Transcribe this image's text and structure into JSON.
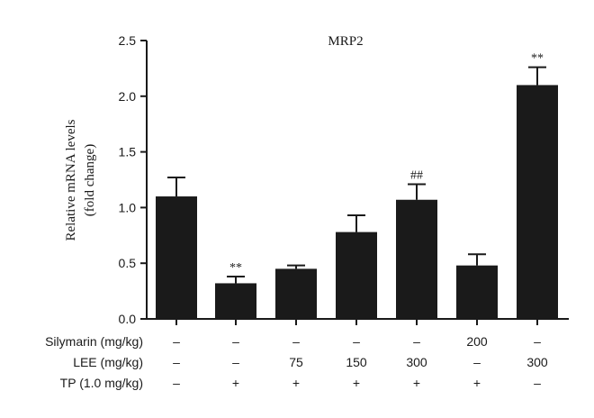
{
  "chart_data": {
    "type": "bar",
    "title": "MRP2",
    "ylabel_lines": [
      "Relative mRNA levels",
      "(fold change)"
    ],
    "ylim": [
      0,
      2.5
    ],
    "yticks": [
      "0.0",
      "0.5",
      "1.0",
      "1.5",
      "2.0",
      "2.5"
    ],
    "grid": false,
    "bar_color": "#1a1a1a",
    "values": [
      1.1,
      0.32,
      0.45,
      0.78,
      1.07,
      0.48,
      2.1
    ],
    "errors": [
      0.17,
      0.06,
      0.03,
      0.15,
      0.14,
      0.1,
      0.16
    ],
    "annotations": [
      "",
      "**",
      "",
      "",
      "##",
      "",
      "**"
    ],
    "treatments": [
      {
        "label": "Silymarin (mg/kg)",
        "values": [
          "–",
          "–",
          "–",
          "–",
          "–",
          "200",
          "–"
        ]
      },
      {
        "label": "LEE (mg/kg)",
        "values": [
          "–",
          "–",
          "75",
          "150",
          "300",
          "–",
          "300"
        ]
      },
      {
        "label": "TP (1.0 mg/kg)",
        "values": [
          "–",
          "+",
          "+",
          "+",
          "+",
          "+",
          "–"
        ]
      }
    ]
  }
}
